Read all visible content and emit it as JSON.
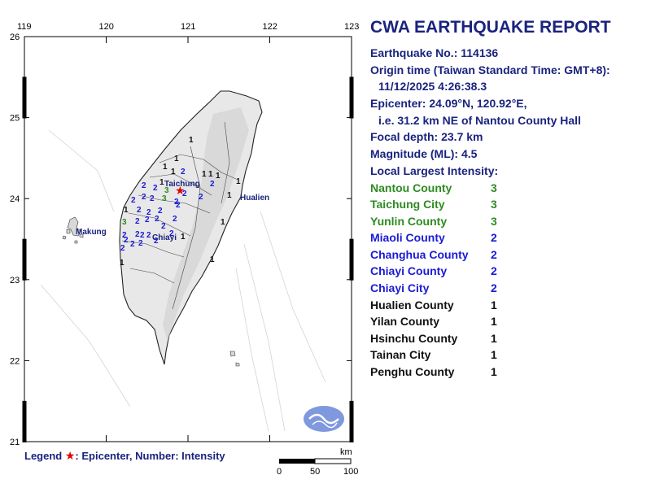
{
  "report": {
    "title": "CWA EARTHQUAKE REPORT",
    "earthquake_no": "Earthquake No.: 114136",
    "origin_time_label": "Origin time (Taiwan Standard Time: GMT+8):",
    "origin_time_value": "11/12/2025  4:26:38.3",
    "epicenter": "Epicenter: 24.09°N, 120.92°E,",
    "epicenter_desc": "i.e. 31.2 km NE of Nantou County Hall",
    "focal_depth": "Focal depth: 23.7 km",
    "magnitude": "Magnitude (ML): 4.5",
    "intensity_heading": "Local Largest Intensity:",
    "intensities": [
      {
        "county": "Nantou County",
        "value": "3",
        "color": "#2e8b22"
      },
      {
        "county": "Taichung City",
        "value": "3",
        "color": "#2e8b22"
      },
      {
        "county": "Yunlin County",
        "value": "3",
        "color": "#2e8b22"
      },
      {
        "county": "Miaoli County",
        "value": "2",
        "color": "#1a1ad6"
      },
      {
        "county": "Changhua County",
        "value": "2",
        "color": "#1a1ad6"
      },
      {
        "county": "Chiayi County",
        "value": "2",
        "color": "#1a1ad6"
      },
      {
        "county": "Chiayi City",
        "value": "2",
        "color": "#1a1ad6"
      },
      {
        "county": "Hualien County",
        "value": "1",
        "color": "#111111"
      },
      {
        "county": "Yilan County",
        "value": "1",
        "color": "#111111"
      },
      {
        "county": "Hsinchu County",
        "value": "1",
        "color": "#111111"
      },
      {
        "county": "Tainan City",
        "value": "1",
        "color": "#111111"
      },
      {
        "county": "Penghu County",
        "value": "1",
        "color": "#111111"
      }
    ]
  },
  "map": {
    "x_ticks": [
      "119",
      "120",
      "121",
      "122",
      "123"
    ],
    "y_ticks": [
      "26",
      "25",
      "24",
      "23",
      "22",
      "21"
    ],
    "cities": [
      "Taichung",
      "Hualien",
      "Chiayi",
      "Makung"
    ],
    "scale_unit": "km",
    "scale_labels": [
      "0",
      "50",
      "100"
    ],
    "epicenter_color": "#e00000",
    "intensity_colors": {
      "1": "#111111",
      "2": "#1a1ad6",
      "3": "#2e8b22"
    }
  },
  "legend": {
    "label": "Legend",
    "star": "★",
    "text": ": Epicenter, Number: Intensity"
  }
}
